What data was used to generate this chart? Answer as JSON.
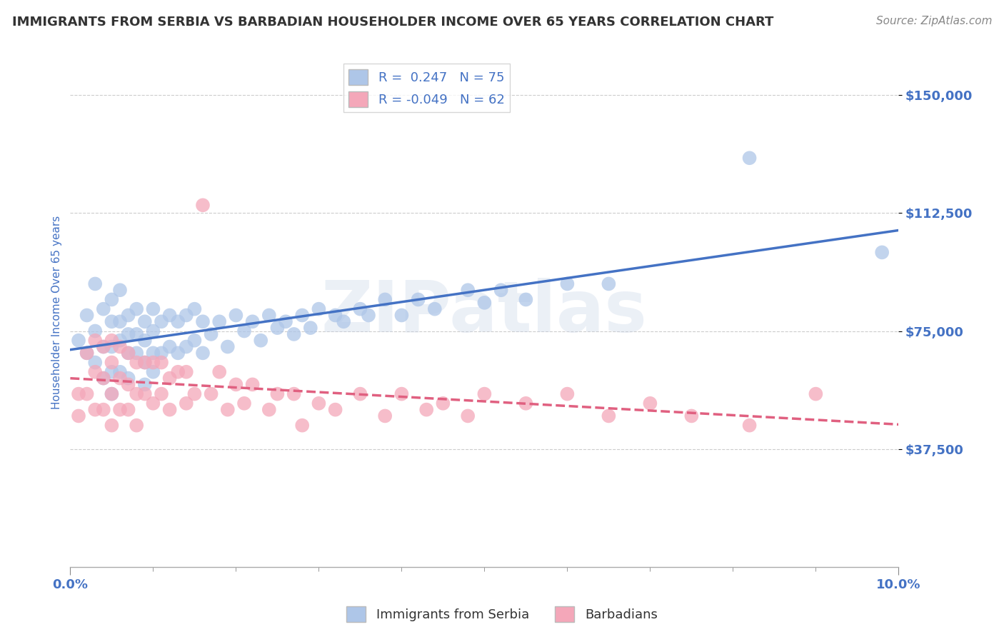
{
  "title": "IMMIGRANTS FROM SERBIA VS BARBADIAN HOUSEHOLDER INCOME OVER 65 YEARS CORRELATION CHART",
  "source": "Source: ZipAtlas.com",
  "ylabel": "Householder Income Over 65 years",
  "watermark": "ZIPatlas",
  "series": [
    {
      "name": "Immigrants from Serbia",
      "R": 0.247,
      "N": 75,
      "color": "#aec6e8",
      "line_color": "#4472c4",
      "line_style": "solid",
      "x": [
        0.001,
        0.002,
        0.002,
        0.003,
        0.003,
        0.003,
        0.004,
        0.004,
        0.004,
        0.005,
        0.005,
        0.005,
        0.005,
        0.005,
        0.006,
        0.006,
        0.006,
        0.006,
        0.007,
        0.007,
        0.007,
        0.007,
        0.008,
        0.008,
        0.008,
        0.009,
        0.009,
        0.009,
        0.009,
        0.01,
        0.01,
        0.01,
        0.01,
        0.011,
        0.011,
        0.012,
        0.012,
        0.013,
        0.013,
        0.014,
        0.014,
        0.015,
        0.015,
        0.016,
        0.016,
        0.017,
        0.018,
        0.019,
        0.02,
        0.021,
        0.022,
        0.023,
        0.024,
        0.025,
        0.026,
        0.027,
        0.028,
        0.029,
        0.03,
        0.032,
        0.033,
        0.035,
        0.036,
        0.038,
        0.04,
        0.042,
        0.044,
        0.048,
        0.05,
        0.052,
        0.055,
        0.06,
        0.065,
        0.082,
        0.098
      ],
      "y": [
        72000,
        68000,
        80000,
        90000,
        75000,
        65000,
        82000,
        70000,
        60000,
        85000,
        78000,
        70000,
        62000,
        55000,
        88000,
        78000,
        72000,
        62000,
        80000,
        74000,
        68000,
        60000,
        82000,
        74000,
        68000,
        78000,
        72000,
        65000,
        58000,
        82000,
        75000,
        68000,
        62000,
        78000,
        68000,
        80000,
        70000,
        78000,
        68000,
        80000,
        70000,
        82000,
        72000,
        78000,
        68000,
        74000,
        78000,
        70000,
        80000,
        75000,
        78000,
        72000,
        80000,
        76000,
        78000,
        74000,
        80000,
        76000,
        82000,
        80000,
        78000,
        82000,
        80000,
        85000,
        80000,
        85000,
        82000,
        88000,
        84000,
        88000,
        85000,
        90000,
        90000,
        130000,
        100000
      ]
    },
    {
      "name": "Barbadians",
      "R": -0.049,
      "N": 62,
      "color": "#f4a7b9",
      "line_color": "#e06080",
      "line_style": "dashed",
      "x": [
        0.001,
        0.001,
        0.002,
        0.002,
        0.003,
        0.003,
        0.003,
        0.004,
        0.004,
        0.004,
        0.005,
        0.005,
        0.005,
        0.005,
        0.006,
        0.006,
        0.006,
        0.007,
        0.007,
        0.007,
        0.008,
        0.008,
        0.008,
        0.009,
        0.009,
        0.01,
        0.01,
        0.011,
        0.011,
        0.012,
        0.012,
        0.013,
        0.014,
        0.014,
        0.015,
        0.016,
        0.017,
        0.018,
        0.019,
        0.02,
        0.021,
        0.022,
        0.024,
        0.025,
        0.027,
        0.028,
        0.03,
        0.032,
        0.035,
        0.038,
        0.04,
        0.043,
        0.045,
        0.048,
        0.05,
        0.055,
        0.06,
        0.065,
        0.07,
        0.075,
        0.082,
        0.09
      ],
      "y": [
        55000,
        48000,
        68000,
        55000,
        72000,
        62000,
        50000,
        70000,
        60000,
        50000,
        72000,
        65000,
        55000,
        45000,
        70000,
        60000,
        50000,
        68000,
        58000,
        50000,
        65000,
        55000,
        45000,
        65000,
        55000,
        65000,
        52000,
        65000,
        55000,
        60000,
        50000,
        62000,
        62000,
        52000,
        55000,
        115000,
        55000,
        62000,
        50000,
        58000,
        52000,
        58000,
        50000,
        55000,
        55000,
        45000,
        52000,
        50000,
        55000,
        48000,
        55000,
        50000,
        52000,
        48000,
        55000,
        52000,
        55000,
        48000,
        52000,
        48000,
        45000,
        55000
      ]
    }
  ],
  "xlim": [
    0.0,
    0.1
  ],
  "ylim": [
    0,
    162000
  ],
  "yticks": [
    37500,
    75000,
    112500,
    150000
  ],
  "ytick_labels": [
    "$37,500",
    "$75,000",
    "$112,500",
    "$150,000"
  ],
  "xtick_major": [
    0.0,
    0.1
  ],
  "xtick_major_labels": [
    "0.0%",
    "10.0%"
  ],
  "xtick_minor": [
    0.01,
    0.02,
    0.03,
    0.04,
    0.05,
    0.06,
    0.07,
    0.08,
    0.09
  ],
  "grid_color": "#cccccc",
  "background_color": "#ffffff",
  "title_color": "#333333",
  "axis_label_color": "#4472c4",
  "tick_label_color": "#4472c4",
  "legend_R_color": "#4472c4",
  "watermark_color": "#c8d4e8",
  "watermark_alpha": 0.35
}
